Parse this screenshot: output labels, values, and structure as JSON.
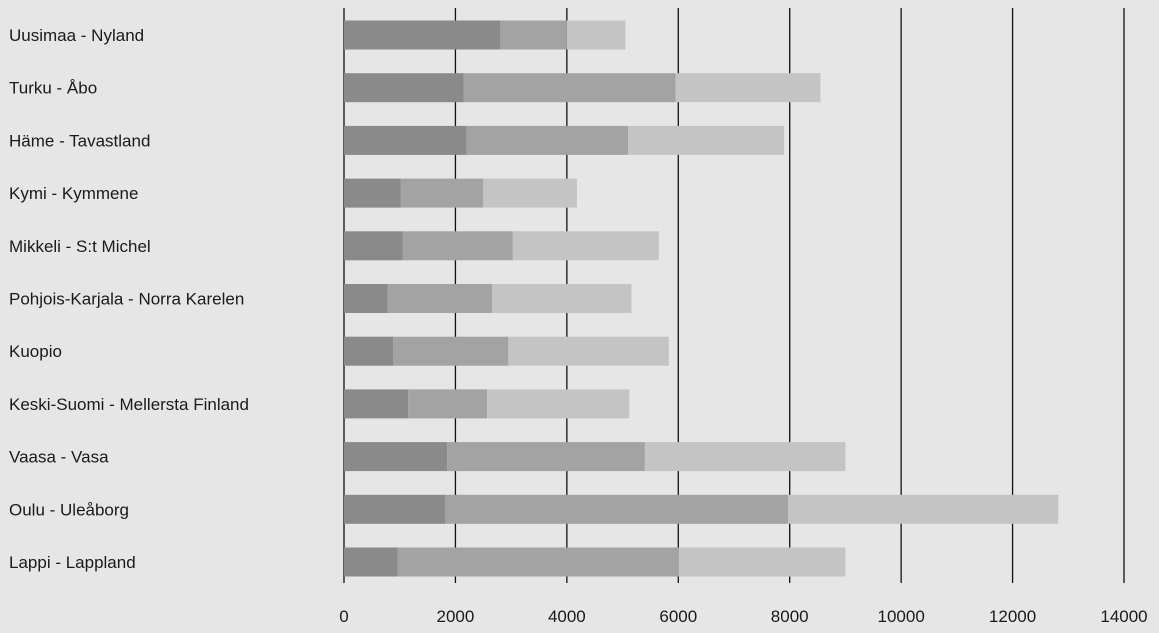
{
  "chart_data": {
    "type": "bar",
    "orientation": "horizontal",
    "stacked": true,
    "categories": [
      "Uusimaa - Nyland",
      "Turku - Åbo",
      "Häme - Tavastland",
      "Kymi - Kymmene",
      "Mikkeli - S:t Michel",
      "Pohjois-Karjala - Norra Karelen",
      "Kuopio",
      "Keski-Suomi - Mellersta Finland",
      "Vaasa - Vasa",
      "Oulu - Uleåborg",
      "Lappi - Lappland"
    ],
    "series": [
      {
        "values": [
          2800,
          2150,
          2200,
          1020,
          1050,
          780,
          880,
          1150,
          1850,
          1820,
          960
        ],
        "color": "#8a8a8a"
      },
      {
        "values": [
          1200,
          3800,
          2900,
          1480,
          1980,
          1880,
          2070,
          1420,
          3550,
          6150,
          5040
        ],
        "color": "#a3a3a3"
      },
      {
        "values": [
          1050,
          2600,
          2800,
          1680,
          2620,
          2500,
          2880,
          2550,
          3600,
          4850,
          3000
        ],
        "color": "#c4c4c4"
      }
    ],
    "xlim": [
      0,
      14000
    ],
    "xticks": [
      "0",
      "2000",
      "4000",
      "6000",
      "8000",
      "10000",
      "12000",
      "14000"
    ],
    "grid": true,
    "xlabel": "",
    "ylabel": "",
    "title": ""
  }
}
